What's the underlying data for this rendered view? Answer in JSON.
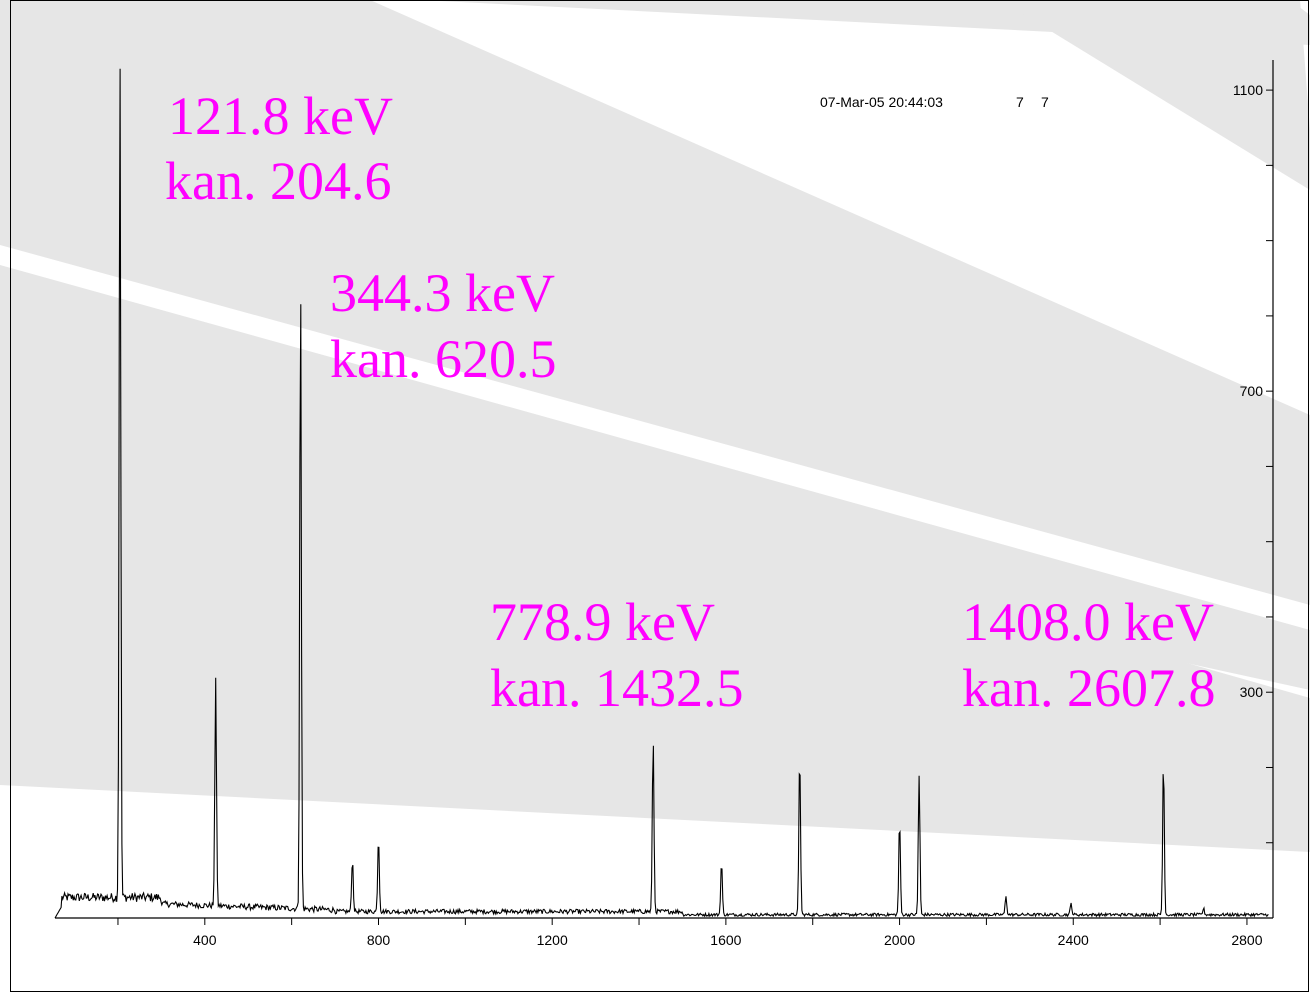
{
  "header": {
    "timestamp": "07-Mar-05 20:44:03",
    "id_a": "7",
    "id_b": "7"
  },
  "chart_data": {
    "type": "line",
    "title": "",
    "xlabel": "",
    "ylabel": "",
    "xlim": [
      55,
      2860
    ],
    "ylim": [
      0,
      1140
    ],
    "grid": false,
    "y_axis_side": "right",
    "x_ticks": [
      400,
      800,
      1200,
      1600,
      2000,
      2400,
      2800
    ],
    "x_tick_labels": [
      "400",
      "800",
      "1200",
      "1600",
      "2000",
      "2400",
      "2800"
    ],
    "y_ticks": [
      300,
      700,
      1100
    ],
    "y_tick_labels": [
      "300",
      "700",
      "1100"
    ],
    "peaks": [
      {
        "channel": 204.6,
        "height": 1130
      },
      {
        "channel": 425,
        "height": 305
      },
      {
        "channel": 620.5,
        "height": 830
      },
      {
        "channel": 740,
        "height": 70
      },
      {
        "channel": 800,
        "height": 100
      },
      {
        "channel": 1432.5,
        "height": 230
      },
      {
        "channel": 1590,
        "height": 70
      },
      {
        "channel": 1770,
        "height": 215
      },
      {
        "channel": 2000,
        "height": 125
      },
      {
        "channel": 2045,
        "height": 185
      },
      {
        "channel": 2245,
        "height": 25
      },
      {
        "channel": 2395,
        "height": 15
      },
      {
        "channel": 2607.8,
        "height": 205
      },
      {
        "channel": 2700,
        "height": 8
      }
    ],
    "annotations": [
      {
        "energy": "121.8 keV",
        "channel_label": "kan. 204.6"
      },
      {
        "energy": "344.3 keV",
        "channel_label": "kan. 620.5"
      },
      {
        "energy": "778.9 keV",
        "channel_label": "kan. 1432.5"
      },
      {
        "energy": "1408.0 keV",
        "channel_label": "kan. 2607.8"
      }
    ],
    "colors": {
      "line": "#000000",
      "annotation": "#ff00ff",
      "watermark": "#e6e6e6"
    }
  }
}
